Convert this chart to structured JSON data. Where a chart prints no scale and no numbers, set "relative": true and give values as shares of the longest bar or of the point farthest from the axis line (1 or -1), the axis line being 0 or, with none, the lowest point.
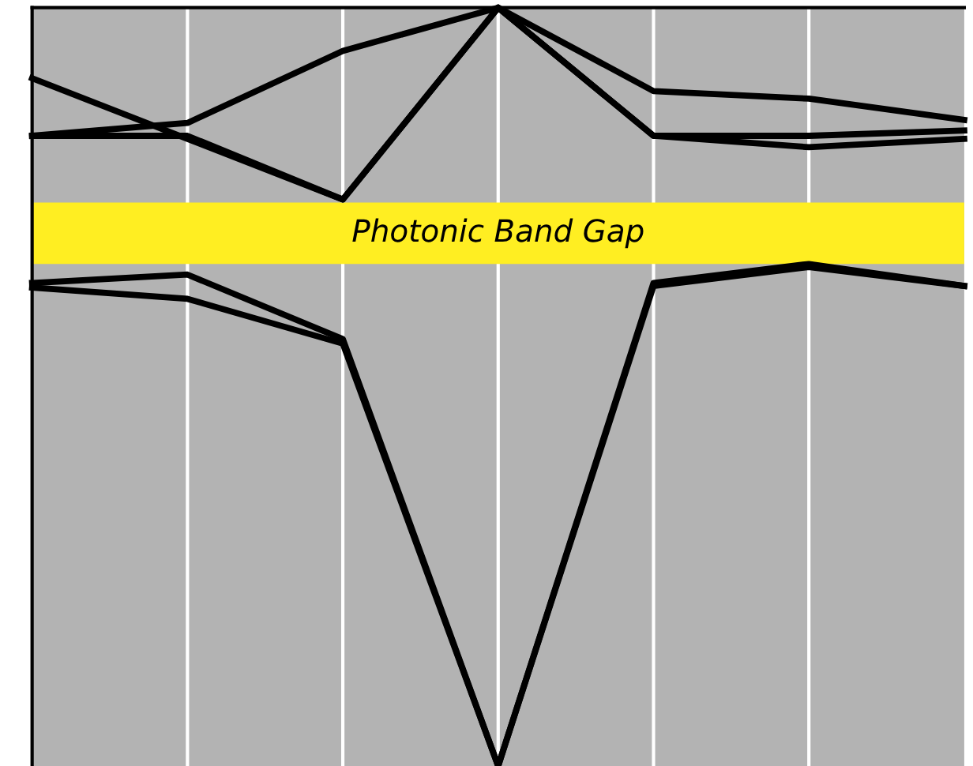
{
  "chart_data": {
    "type": "line",
    "relative": true,
    "categories": [
      null,
      null,
      null,
      null,
      null,
      null,
      null
    ],
    "series": [
      {
        "color": "#000000",
        "values": [
          0.637,
          0.648,
          0.563,
          0,
          0.637,
          0.662,
          0.633
        ]
      },
      {
        "color": "#000000",
        "values": [
          0.631,
          0.616,
          0.557,
          0,
          0.633,
          0.658,
          0.633
        ]
      },
      {
        "color": "#000000",
        "values": [
          0.907,
          0.827,
          0.747,
          1,
          0.831,
          0.816,
          0.827
        ]
      },
      {
        "color": "#000000",
        "values": [
          0.831,
          0.848,
          0.943,
          1,
          0.89,
          0.88,
          0.852
        ]
      },
      {
        "color": "#000000",
        "values": [
          0.831,
          0.831,
          0.747,
          1,
          0.831,
          0.831,
          0.838
        ]
      }
    ],
    "bands": [
      {
        "axis": "y",
        "from": 0.662,
        "to": 0.743,
        "label": "Photonic Band Gap",
        "color": "#ffee22"
      }
    ],
    "grid": "x",
    "marker": "none",
    "line_style": "solid",
    "legend": false
  }
}
